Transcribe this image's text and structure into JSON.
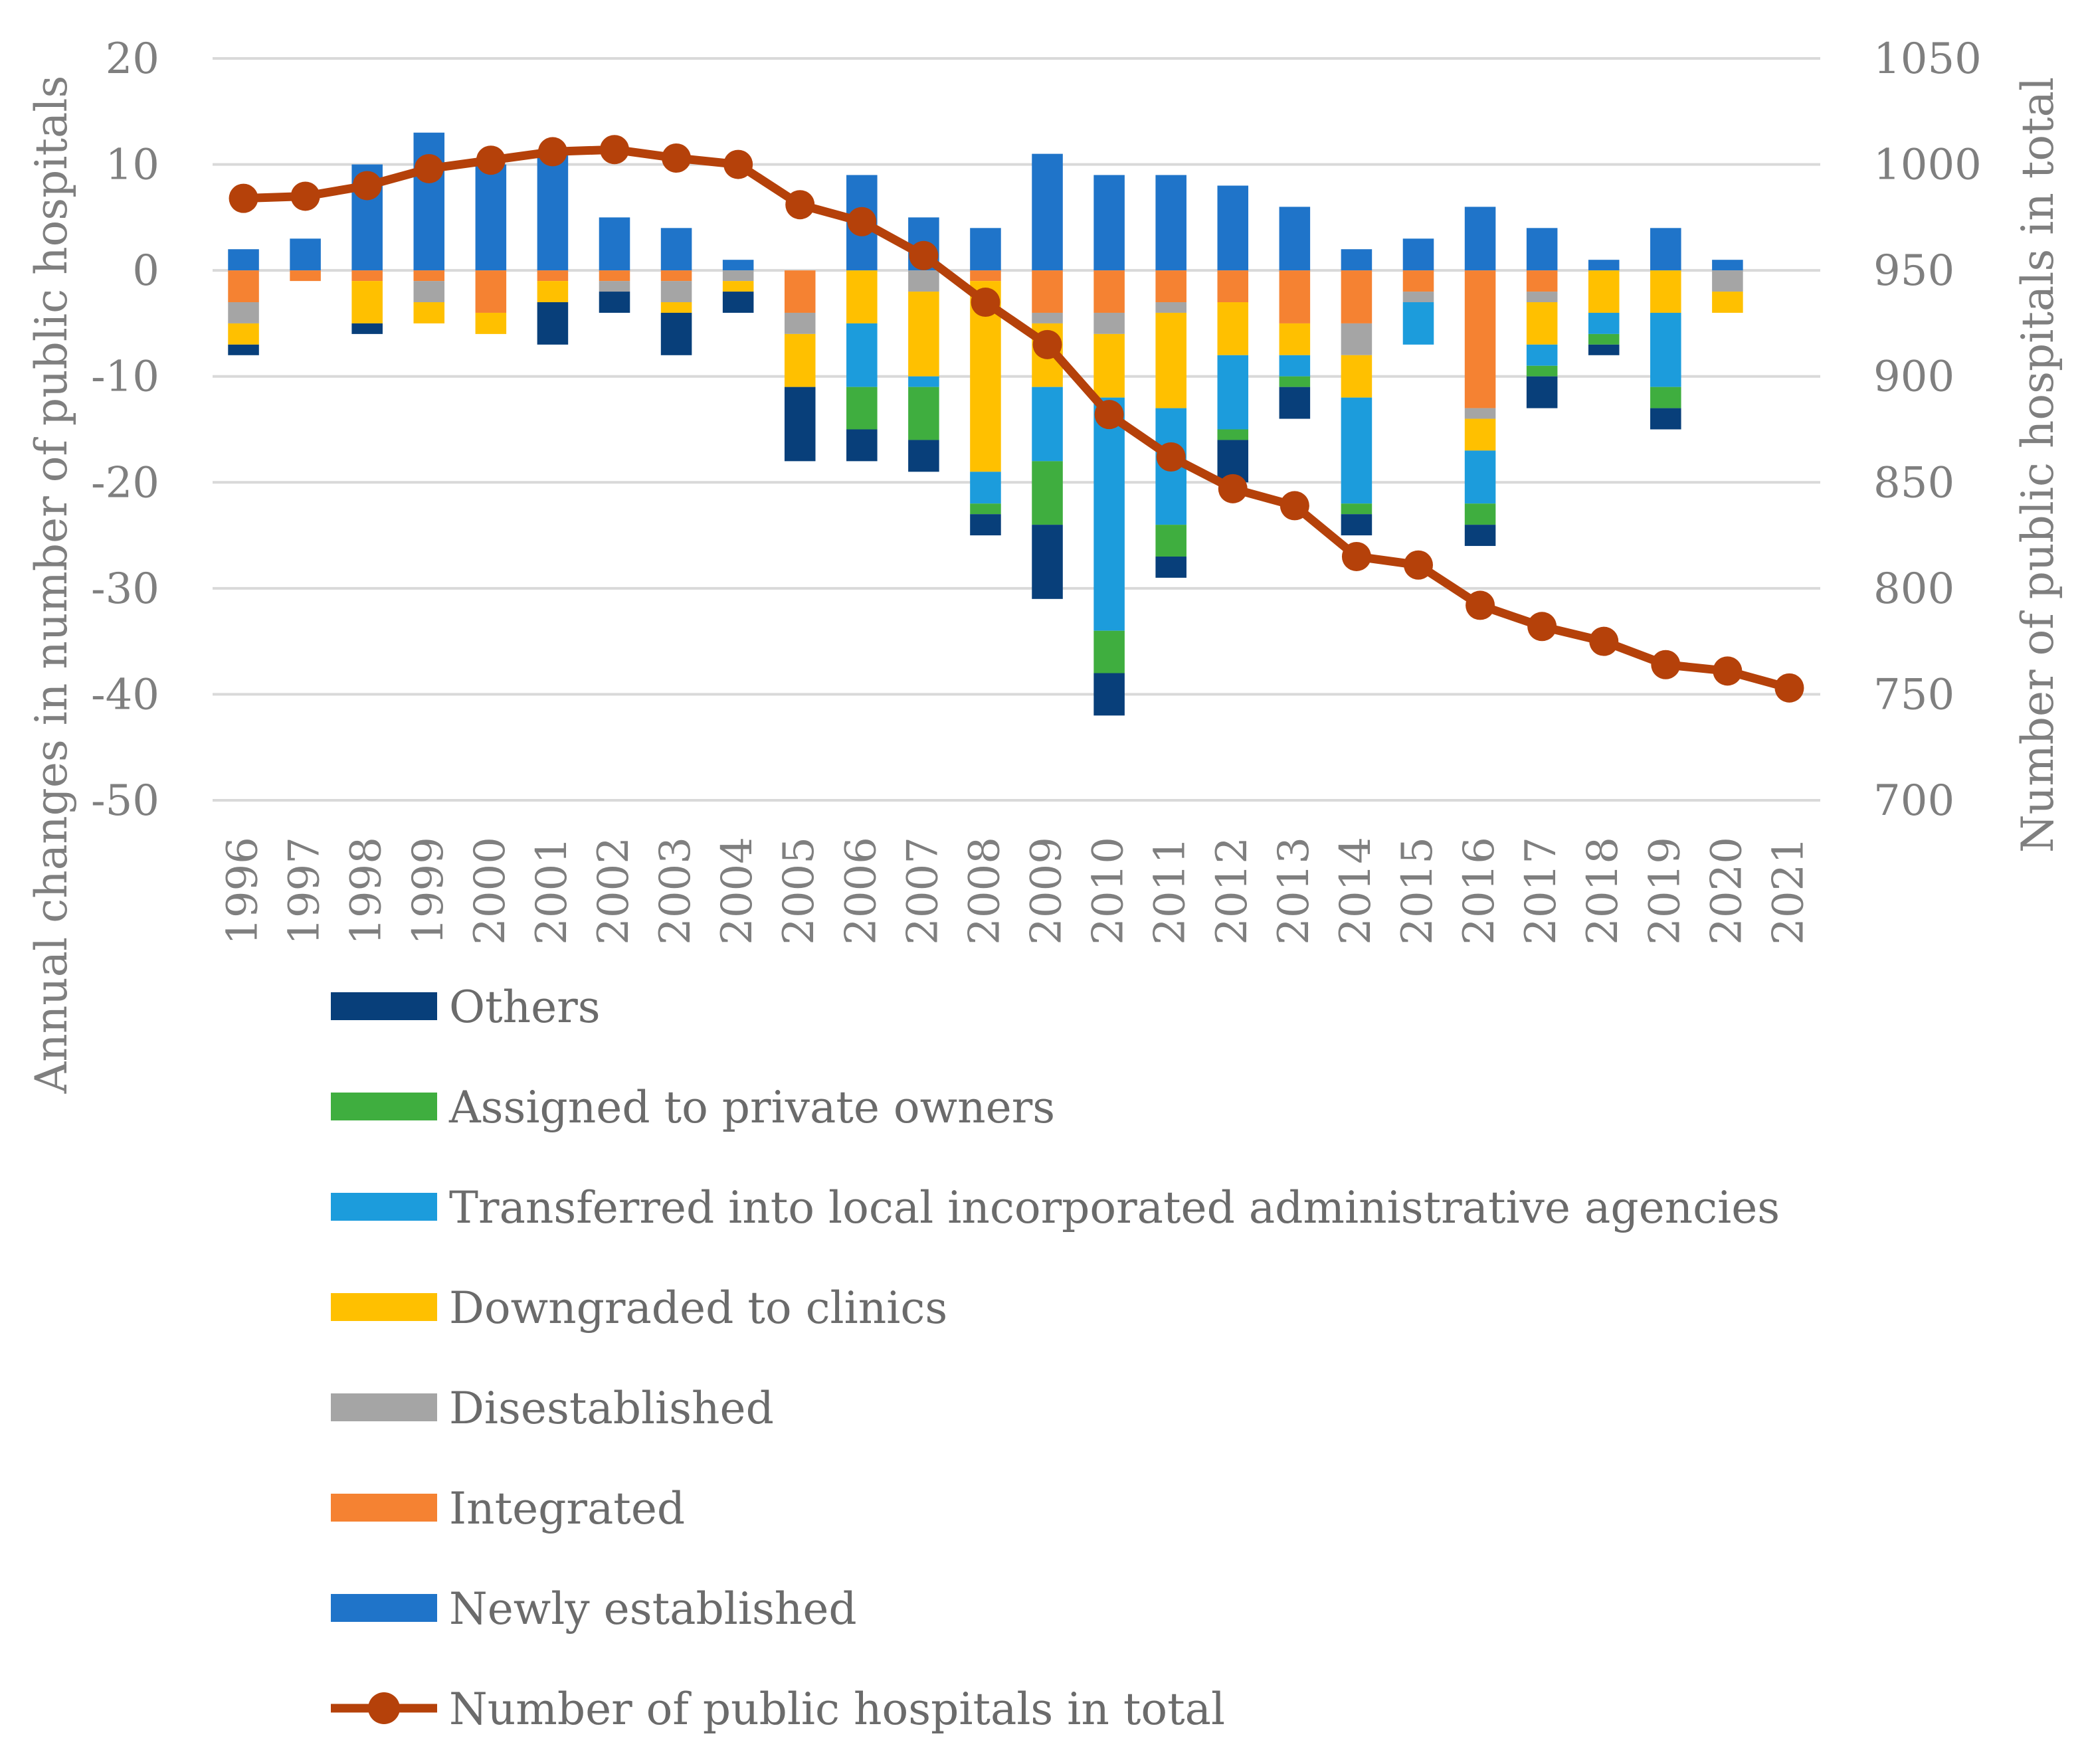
{
  "chart_data": {
    "type": "bar",
    "subtype": "stacked-bar-with-line",
    "title": "",
    "categories": [
      "1996",
      "1997",
      "1998",
      "1999",
      "2000",
      "2001",
      "2002",
      "2003",
      "2004",
      "2005",
      "2006",
      "2007",
      "2008",
      "2009",
      "2010",
      "2011",
      "2012",
      "2013",
      "2014",
      "2015",
      "2016",
      "2017",
      "2018",
      "2019",
      "2020",
      "2021"
    ],
    "ylabel": "Annual changes in number of public hospitals",
    "y2label": "Number of public hospitals in total",
    "ylim": [
      -50,
      20
    ],
    "yticks": [
      20,
      10,
      0,
      -10,
      -20,
      -30,
      -40,
      -50
    ],
    "y2lim": [
      700,
      1050
    ],
    "y2ticks": [
      1050,
      1000,
      950,
      900,
      850,
      800,
      750,
      700
    ],
    "grid": true,
    "series": [
      {
        "name": "Newly established",
        "color": "#1f74c9",
        "values": [
          2,
          3,
          10,
          13,
          10,
          11,
          5,
          4,
          1,
          0,
          9,
          5,
          4,
          11,
          9,
          9,
          8,
          6,
          2,
          3,
          6,
          4,
          1,
          4,
          1,
          0
        ]
      },
      {
        "name": "Integrated",
        "color": "#f58232",
        "values": [
          -3,
          -1,
          -1,
          -1,
          -4,
          -1,
          -1,
          -1,
          0,
          -4,
          0,
          0,
          -1,
          -4,
          -4,
          -3,
          -3,
          -5,
          -5,
          -2,
          -13,
          -2,
          0,
          0,
          0,
          0
        ]
      },
      {
        "name": "Disestablished",
        "color": "#a5a5a5",
        "values": [
          -2,
          0,
          0,
          -2,
          0,
          0,
          -1,
          -2,
          -1,
          -2,
          0,
          -2,
          0,
          -1,
          -2,
          -1,
          0,
          0,
          -3,
          -1,
          -1,
          -1,
          0,
          0,
          -2,
          0
        ]
      },
      {
        "name": "Downgraded to clinics",
        "color": "#ffc000",
        "values": [
          -2,
          0,
          -4,
          -2,
          -2,
          -2,
          0,
          -1,
          -1,
          -5,
          -5,
          -8,
          -18,
          -6,
          -6,
          -9,
          -5,
          -3,
          -4,
          0,
          -3,
          -4,
          -4,
          -4,
          -2,
          0
        ]
      },
      {
        "name": "Transferred into local incorporated administrative agencies",
        "color": "#1c9cdc",
        "values": [
          0,
          0,
          0,
          0,
          0,
          0,
          0,
          0,
          0,
          0,
          -6,
          -1,
          -3,
          -7,
          -22,
          -11,
          -7,
          -2,
          -10,
          -4,
          -5,
          -2,
          -2,
          -7,
          0,
          0
        ]
      },
      {
        "name": "Assigned to private owners",
        "color": "#3fae3f",
        "values": [
          0,
          0,
          0,
          0,
          0,
          0,
          0,
          0,
          0,
          0,
          -4,
          -5,
          -1,
          -6,
          -4,
          -3,
          -1,
          -1,
          -1,
          0,
          -2,
          -1,
          -1,
          -2,
          0,
          0
        ]
      },
      {
        "name": "Others",
        "color": "#083f7a",
        "values": [
          -1,
          0,
          -1,
          0,
          0,
          -4,
          -2,
          -4,
          -2,
          -7,
          -3,
          -3,
          -2,
          -7,
          -4,
          -2,
          -4,
          -3,
          -2,
          0,
          -2,
          -3,
          -1,
          -2,
          0,
          0
        ]
      }
    ],
    "line_series": {
      "name": "Number of public hospitals in total",
      "color": "#b5410a",
      "axis": "right",
      "values": [
        984,
        985,
        990,
        998,
        1002,
        1006,
        1007,
        1003,
        1000,
        981,
        973,
        957,
        935,
        915,
        882,
        862,
        847,
        839,
        815,
        811,
        792,
        782,
        775,
        764,
        761,
        753
      ]
    },
    "legend_order": [
      "Others",
      "Assigned to private owners",
      "Transferred into local incorporated administrative agencies",
      "Downgraded to clinics",
      "Disestablished",
      "Integrated",
      "Newly established",
      "Number of public hospitals in total"
    ],
    "legend_position": "bottom"
  }
}
